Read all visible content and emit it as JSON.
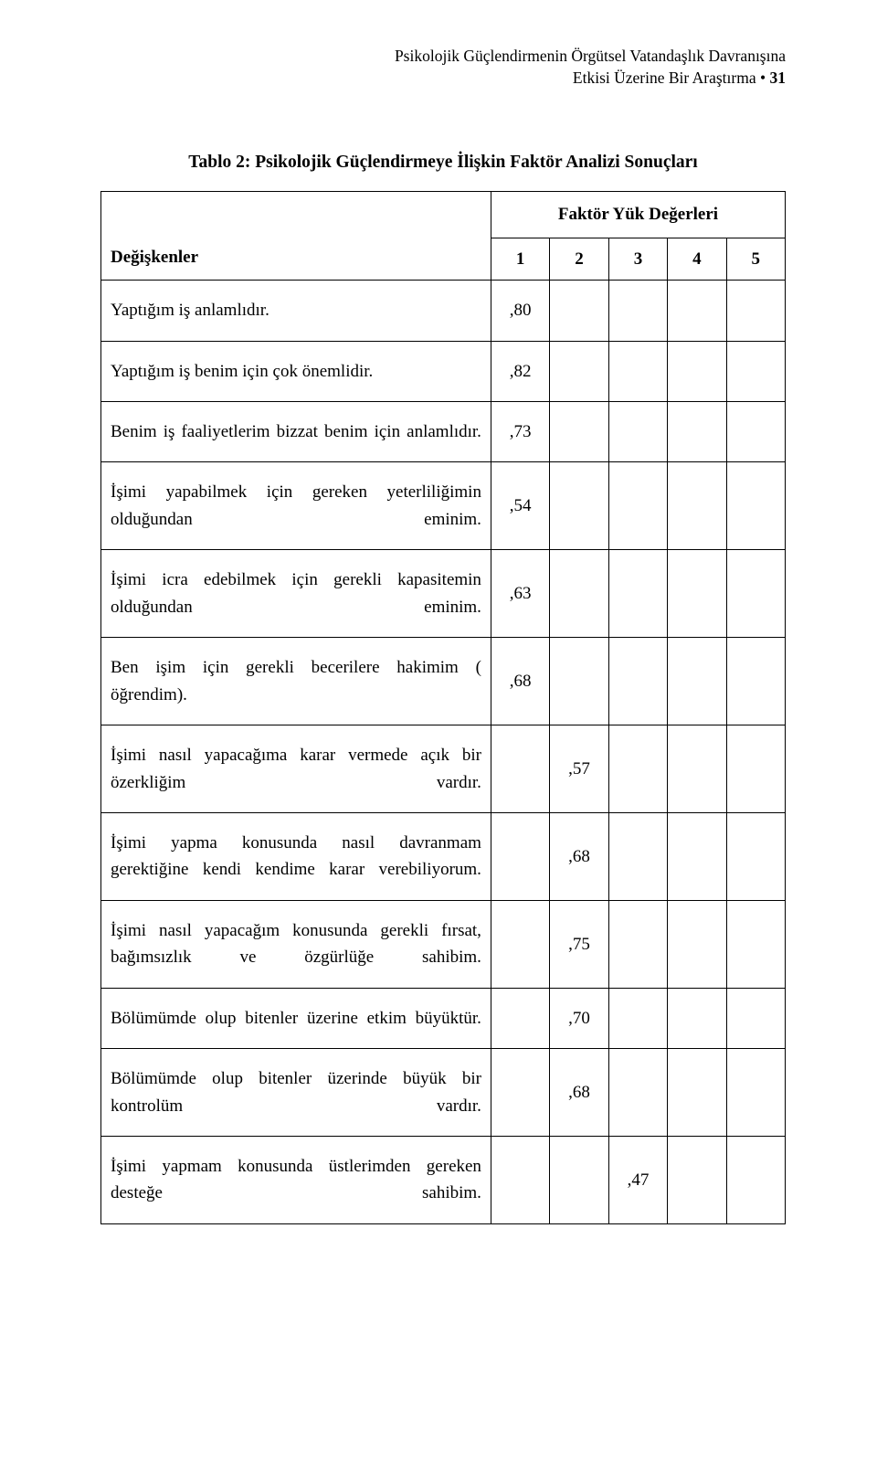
{
  "header": {
    "line1": "Psikolojik Güçlendirmenin Örgütsel Vatandaşlık Davranışına",
    "line2_pre": "Etkisi Üzerine Bir Araştırma •",
    "page_number": "31"
  },
  "table": {
    "title": "Tablo 2: Psikolojik Güçlendirmeye İlişkin Faktör Analizi Sonuçları",
    "variables_label": "Değişkenler",
    "factor_label": "Faktör Yük Değerleri",
    "col_numbers": [
      "1",
      "2",
      "3",
      "4",
      "5"
    ],
    "rows": [
      {
        "text": "Yaptığım iş anlamlıdır.",
        "values": [
          ",80",
          "",
          "",
          "",
          ""
        ],
        "single": true
      },
      {
        "text": "Yaptığım iş benim için çok önemlidir.",
        "values": [
          ",82",
          "",
          "",
          "",
          ""
        ],
        "single": true
      },
      {
        "text": "Benim iş faaliyetlerim bizzat benim için anlamlıdır.",
        "values": [
          ",73",
          "",
          "",
          "",
          ""
        ],
        "single": false
      },
      {
        "text": "İşimi yapabilmek için gereken yeterliliğimin olduğundan eminim.",
        "values": [
          ",54",
          "",
          "",
          "",
          ""
        ],
        "single": false
      },
      {
        "text": "İşimi icra edebilmek için gerekli kapasitemin olduğundan eminim.",
        "values": [
          ",63",
          "",
          "",
          "",
          ""
        ],
        "single": false
      },
      {
        "text": "Ben işim için gerekli becerilere hakimim ( öğrendim).",
        "values": [
          ",68",
          "",
          "",
          "",
          ""
        ],
        "single": false
      },
      {
        "text": "İşimi nasıl yapacağıma karar vermede açık bir özerkliğim vardır.",
        "values": [
          "",
          ",57",
          "",
          "",
          ""
        ],
        "single": false
      },
      {
        "text": "İşimi yapma konusunda nasıl davranmam gerektiğine kendi kendime karar verebiliyorum.",
        "values": [
          "",
          ",68",
          "",
          "",
          ""
        ],
        "single": false
      },
      {
        "text": "İşimi nasıl yapacağım konusunda gerekli fırsat, bağımsızlık ve özgürlüğe sahibim.",
        "values": [
          "",
          ",75",
          "",
          "",
          ""
        ],
        "single": false
      },
      {
        "text": "Bölümümde olup bitenler üzerine etkim büyüktür.",
        "values": [
          "",
          ",70",
          "",
          "",
          ""
        ],
        "single": false
      },
      {
        "text": "Bölümümde olup bitenler üzerinde büyük bir kontrolüm vardır.",
        "values": [
          "",
          ",68",
          "",
          "",
          ""
        ],
        "single": false
      },
      {
        "text": "İşimi yapmam konusunda üstlerimden gereken desteğe sahibim.",
        "values": [
          "",
          "",
          ",47",
          "",
          ""
        ],
        "single": false
      }
    ]
  },
  "style": {
    "font_family": "Book Antiqua / Palatino serif",
    "primary_color": "#000000",
    "background": "#ffffff"
  }
}
